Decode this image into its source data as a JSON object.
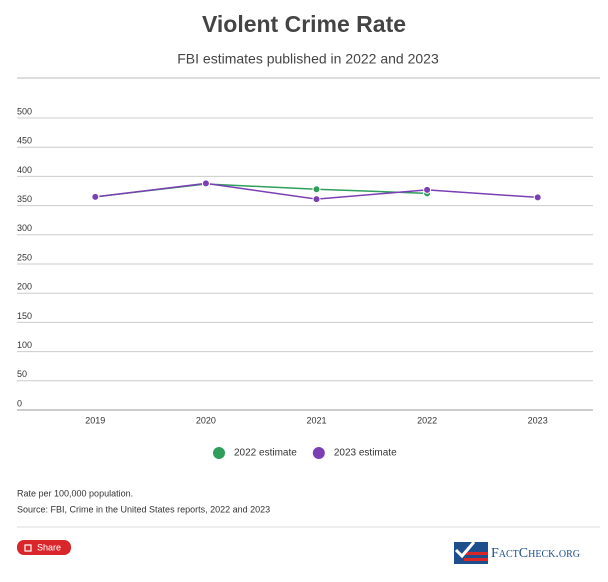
{
  "chart_data": {
    "type": "line",
    "title": "Violent Crime Rate",
    "subtitle": "FBI estimates published in 2022 and 2023",
    "categories": [
      "2019",
      "2020",
      "2021",
      "2022",
      "2023"
    ],
    "series": [
      {
        "name": "2022 estimate",
        "color": "#2e9e5b",
        "values": [
          365,
          387,
          378,
          371,
          null
        ]
      },
      {
        "name": "2023 estimate",
        "color": "#7b3fb5",
        "values": [
          365,
          388,
          361,
          377,
          364
        ]
      }
    ],
    "ylim": [
      0,
      500
    ],
    "yticks": [
      0,
      50,
      100,
      150,
      200,
      250,
      300,
      350,
      400,
      450,
      500
    ],
    "grid": true,
    "legend": "bottom"
  },
  "notes": [
    "Rate per 100,000 population.",
    "Source: FBI, Crime in the United States reports, 2022 and 2023"
  ],
  "share": "Share",
  "logo": "FactCheck.org"
}
